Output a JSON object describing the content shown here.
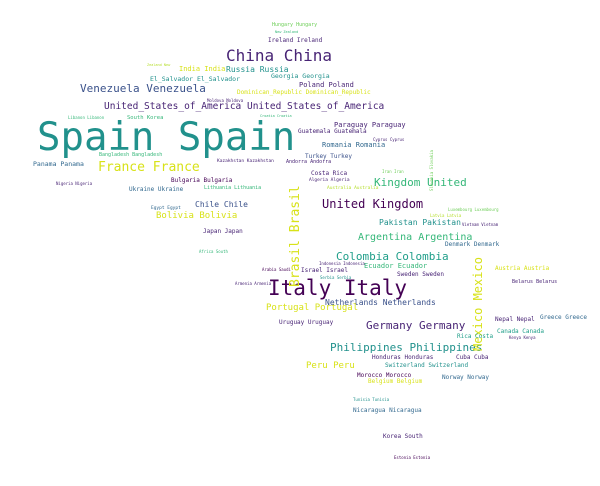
{
  "palette": {
    "darkpurple": "#440154",
    "indigo": "#482475",
    "blue": "#3b528b",
    "steel": "#31688e",
    "teal": "#21918c",
    "sea": "#1f9e89",
    "green": "#35b779",
    "lime": "#6ece58",
    "yellowgreen": "#b5de2b",
    "yellow": "#d8e219"
  },
  "words": [
    {
      "t": "Spain Spain",
      "c": "teal"
    },
    {
      "t": "Italy Italy",
      "c": "darkpurple"
    },
    {
      "t": "China China",
      "c": "indigo"
    },
    {
      "t": "France France",
      "c": "yellow"
    },
    {
      "t": "Venezuela Venezuela",
      "c": "blue"
    },
    {
      "t": "United_States_of_America United_States_of_America",
      "c": "indigo"
    },
    {
      "t": "United Kingdom",
      "c": "darkpurple"
    },
    {
      "t": "Kingdom United",
      "c": "green"
    },
    {
      "t": "Colombia Colombia",
      "c": "sea"
    },
    {
      "t": "Germany Germany",
      "c": "indigo"
    },
    {
      "t": "Philippines Philippines",
      "c": "teal"
    },
    {
      "t": "Brasil Brasil",
      "c": "yellow"
    },
    {
      "t": "Mexico Mexico",
      "c": "yellow"
    },
    {
      "t": "Argentina Argentina",
      "c": "green"
    },
    {
      "t": "Russia Russia",
      "c": "teal"
    },
    {
      "t": "Chile Chile",
      "c": "blue"
    },
    {
      "t": "Bolivia Bolivia",
      "c": "yellow"
    },
    {
      "t": "Pakistan Pakistan",
      "c": "teal"
    },
    {
      "t": "Portugal Portugal",
      "c": "yellow"
    },
    {
      "t": "Peru Peru",
      "c": "yellow"
    },
    {
      "t": "Netherlands Netherlands",
      "c": "blue"
    },
    {
      "t": "Romania Romania",
      "c": "steel"
    },
    {
      "t": "Ecuador Ecuador",
      "c": "green"
    },
    {
      "t": "India India",
      "c": "yellow"
    },
    {
      "t": "Poland Poland",
      "c": "indigo"
    },
    {
      "t": "Panama Panama",
      "c": "steel"
    },
    {
      "t": "Paraguay Paraguay",
      "c": "indigo"
    },
    {
      "t": "Guatemala Guatemala",
      "c": "indigo"
    },
    {
      "t": "Turkey Turkey",
      "c": "blue"
    },
    {
      "t": "Costa Rica",
      "c": "indigo"
    },
    {
      "t": "Japan Japan",
      "c": "indigo"
    },
    {
      "t": "Ukraine Ukraine",
      "c": "steel"
    },
    {
      "t": "Bulgaria Bulgaria",
      "c": "darkpurple"
    },
    {
      "t": "Uruguay Uruguay",
      "c": "indigo"
    },
    {
      "t": "Israel Israel",
      "c": "indigo"
    },
    {
      "t": "Honduras Honduras",
      "c": "indigo"
    },
    {
      "t": "Morocco Morocco",
      "c": "darkpurple"
    },
    {
      "t": "Cuba Cuba",
      "c": "indigo"
    },
    {
      "t": "Switzerland Switzerland",
      "c": "teal"
    },
    {
      "t": "Belgium Belgium",
      "c": "yellow"
    },
    {
      "t": "Norway Norway",
      "c": "steel"
    },
    {
      "t": "Nicaragua Nicaragua",
      "c": "steel"
    },
    {
      "t": "Korea South",
      "c": "indigo"
    },
    {
      "t": "Greece Greece",
      "c": "steel"
    },
    {
      "t": "Canada Canada",
      "c": "sea"
    },
    {
      "t": "Nepal Nepal",
      "c": "indigo"
    },
    {
      "t": "Rica Costa",
      "c": "sea"
    },
    {
      "t": "Denmark Denmark",
      "c": "steel"
    },
    {
      "t": "Sweden Sweden",
      "c": "indigo"
    },
    {
      "t": "Austria Austria",
      "c": "yellow"
    },
    {
      "t": "Belarus Belarus",
      "c": "indigo"
    },
    {
      "t": "Algeria Algeria",
      "c": "indigo"
    },
    {
      "t": "Dominican_Republic Dominican_Republic",
      "c": "yellow"
    },
    {
      "t": "El_Salvador El_Salvador",
      "c": "teal"
    },
    {
      "t": "Georgia Georgia",
      "c": "teal"
    },
    {
      "t": "Ireland Ireland",
      "c": "indigo"
    },
    {
      "t": "Hungary Hungary",
      "c": "lime"
    },
    {
      "t": "South Korea",
      "c": "green"
    },
    {
      "t": "Lithuania Lithuania",
      "c": "green"
    },
    {
      "t": "Egypt Egypt",
      "c": "steel"
    },
    {
      "t": "Kazakhstan Kazakhstan",
      "c": "indigo"
    },
    {
      "t": "Andorra Andorra",
      "c": "indigo"
    },
    {
      "t": "Australia Australia",
      "c": "yellowgreen"
    },
    {
      "t": "Bangladesh Bangladesh",
      "c": "green"
    },
    {
      "t": "Nigeria Nigeria",
      "c": "indigo"
    },
    {
      "t": "Libanon Libanon",
      "c": "green"
    },
    {
      "t": "Africa South",
      "c": "green"
    },
    {
      "t": "Cyprus Cyprus",
      "c": "indigo"
    },
    {
      "t": "Zealand New",
      "c": "yellowgreen"
    },
    {
      "t": "New Zealand",
      "c": "green"
    },
    {
      "t": "Croatia Croatia",
      "c": "green"
    },
    {
      "t": "Moldova Moldova",
      "c": "indigo"
    },
    {
      "t": "Tunisia Tunisia",
      "c": "teal"
    },
    {
      "t": "Estonia Estonia",
      "c": "darkpurple"
    },
    {
      "t": "Vietnam Vietnam",
      "c": "indigo"
    },
    {
      "t": "Indonesia Indonesia",
      "c": "indigo"
    },
    {
      "t": "Serbia Serbia",
      "c": "teal"
    },
    {
      "t": "Armenia Armenia",
      "c": "indigo"
    },
    {
      "t": "Arabia Saudi",
      "c": "darkpurple"
    },
    {
      "t": "Kenya Kenya",
      "c": "indigo"
    },
    {
      "t": "Luxembourg Luxembourg",
      "c": "lime"
    },
    {
      "t": "Latvia Latvia",
      "c": "yellowgreen"
    },
    {
      "t": "Iran Iran",
      "c": "lime"
    },
    {
      "t": "Slovakia Slovakia",
      "c": "lime"
    }
  ]
}
